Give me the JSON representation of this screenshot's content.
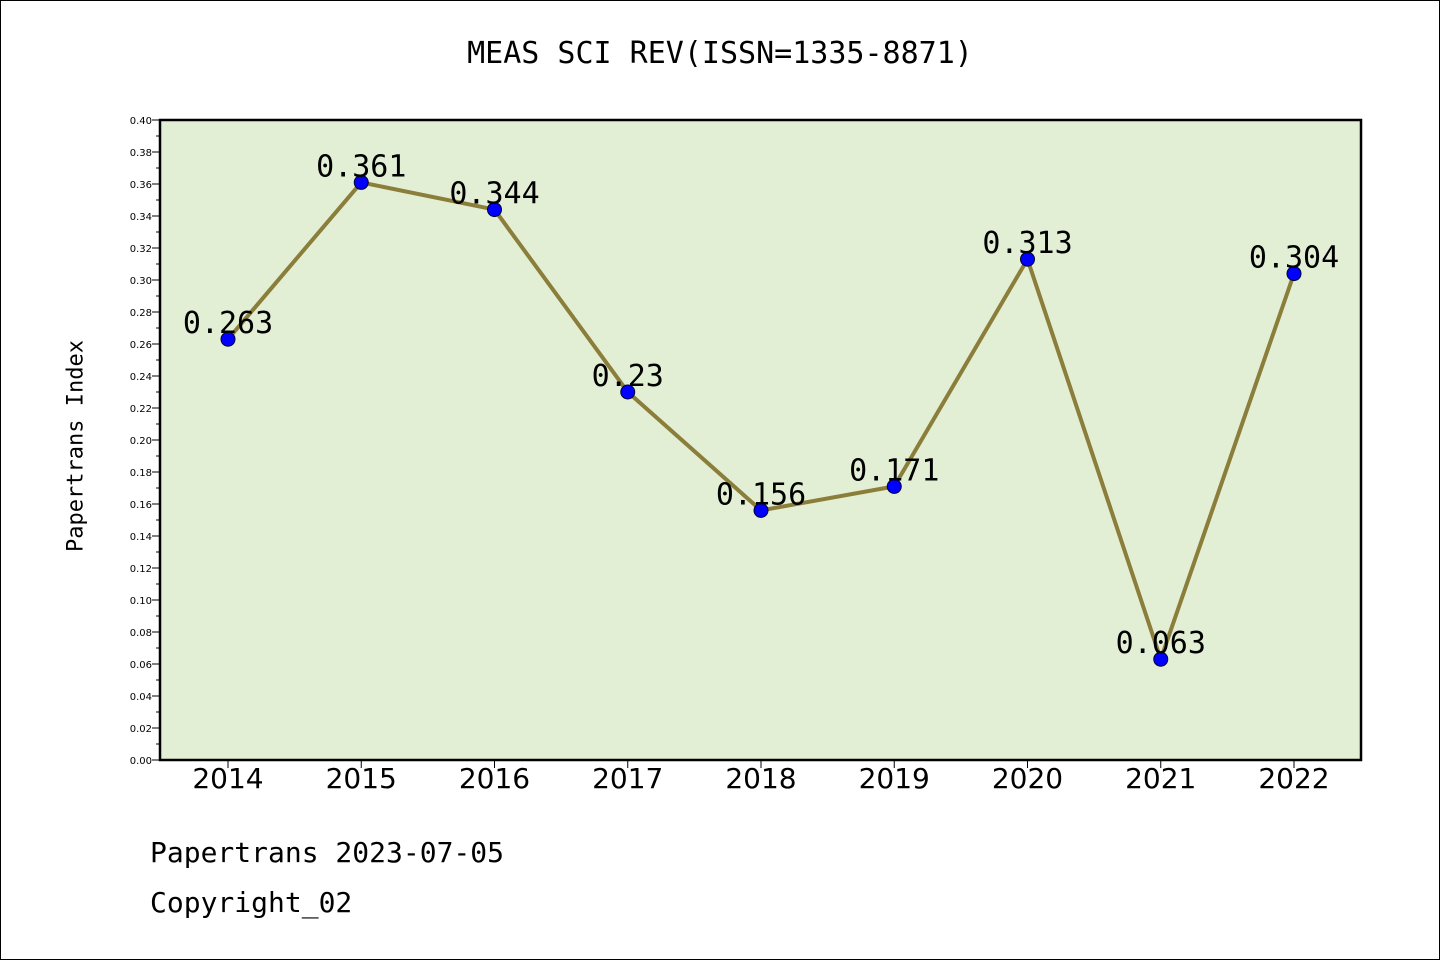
{
  "chart_data": {
    "type": "line",
    "title": "MEAS SCI REV(ISSN=1335-8871)",
    "xlabel": "",
    "ylabel": "Papertrans Index",
    "categories": [
      "2014",
      "2015",
      "2016",
      "2017",
      "2018",
      "2019",
      "2020",
      "2021",
      "2022"
    ],
    "series": [
      {
        "values": [
          0.263,
          0.361,
          0.344,
          0.23,
          0.156,
          0.171,
          0.313,
          0.063,
          0.304
        ],
        "labels": [
          "0.263",
          "0.361",
          "0.344",
          "0.23",
          "0.156",
          "0.171",
          "0.313",
          "0.063",
          "0.304"
        ]
      }
    ],
    "ylim": [
      0,
      0.4
    ],
    "yticks": [
      "0.00",
      "0.02",
      "0.04",
      "0.06",
      "0.08",
      "0.10",
      "0.12",
      "0.14",
      "0.16",
      "0.18",
      "0.20",
      "0.22",
      "0.24",
      "0.26",
      "0.28",
      "0.30",
      "0.32",
      "0.34",
      "0.36",
      "0.38",
      "0.40"
    ],
    "grid": false,
    "colors": {
      "plot_background": "#e2efd5",
      "line": "#8b7d3a",
      "marker": "#0000ff"
    }
  },
  "footer": {
    "line1": "Papertrans 2023-07-05",
    "line2": "Copyright_02"
  }
}
